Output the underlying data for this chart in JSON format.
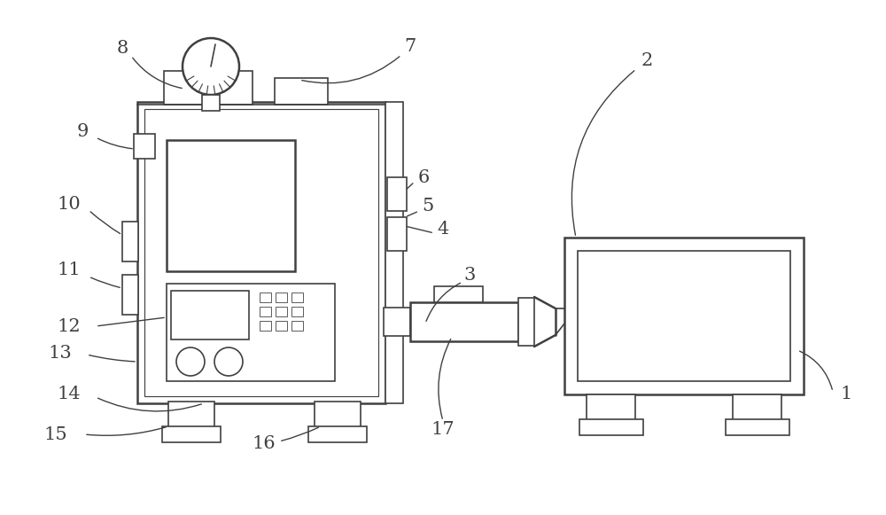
{
  "bg_color": "#ffffff",
  "lc": "#404040",
  "lw": 1.8,
  "tlw": 1.2,
  "fs": 15,
  "fig_w": 10.0,
  "fig_h": 5.81
}
